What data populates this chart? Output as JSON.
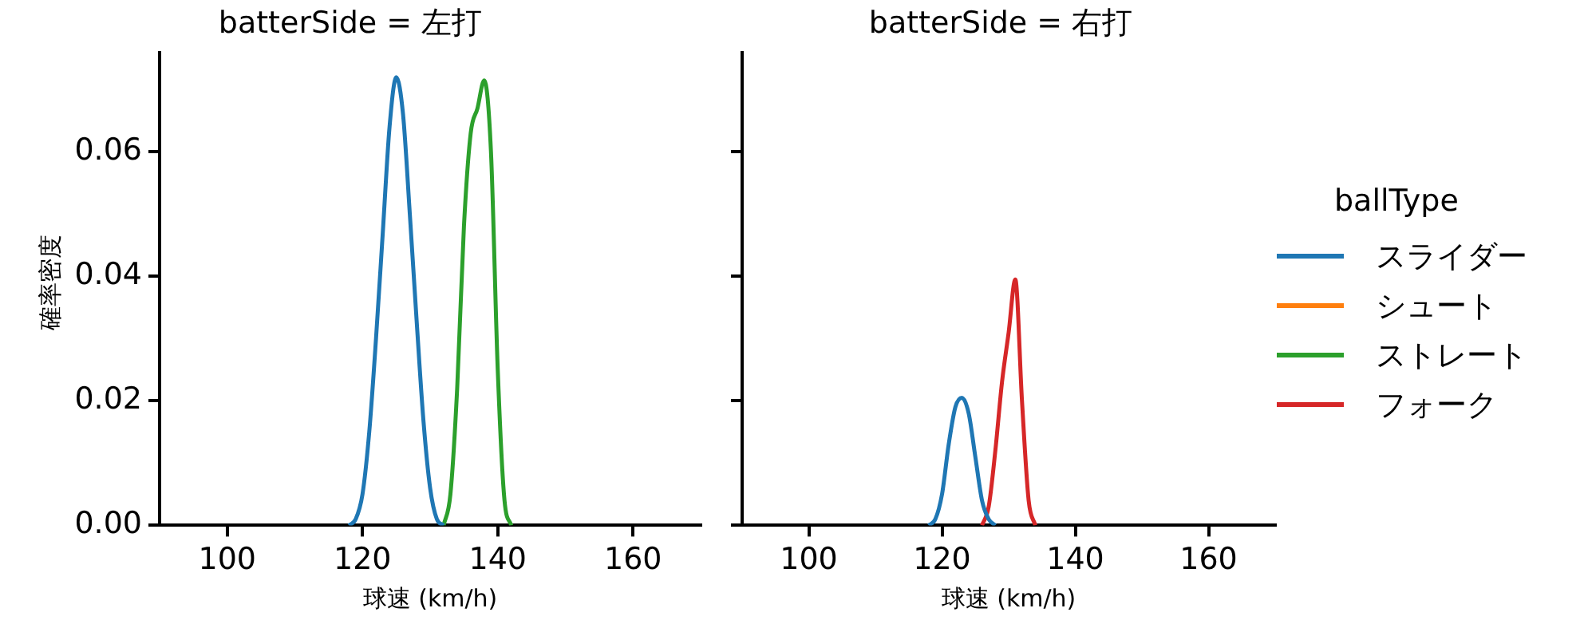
{
  "chart_data": [
    {
      "type": "line",
      "title": "batterSide = 左打",
      "xlabel": "球速 (km/h)",
      "ylabel": "確率密度",
      "xlim": [
        90,
        170
      ],
      "xticks": [
        100,
        120,
        140,
        160
      ],
      "ylim": [
        0,
        0.076
      ],
      "yticks": [
        {
          "value": 0,
          "label": "0.00"
        },
        {
          "value": 0.02,
          "label": "0.02"
        },
        {
          "value": 0.04,
          "label": "0.04"
        },
        {
          "value": 0.06,
          "label": "0.06"
        }
      ],
      "grid": false,
      "legend": false,
      "marker": "none",
      "line_style": "solid",
      "series": [
        {
          "color": "#1f77b4",
          "x": [
            118,
            119,
            120,
            121,
            122,
            123,
            124,
            125,
            126,
            127,
            128,
            129,
            130,
            131,
            132
          ],
          "values": [
            0,
            0.001,
            0.005,
            0.015,
            0.03,
            0.047,
            0.064,
            0.072,
            0.066,
            0.05,
            0.033,
            0.017,
            0.006,
            0.001,
            0
          ]
        },
        {
          "color": "#2ca02c",
          "x": [
            132,
            133,
            134,
            135,
            136,
            137,
            138,
            139,
            140,
            141,
            142
          ],
          "values": [
            0,
            0.005,
            0.022,
            0.048,
            0.063,
            0.067,
            0.0715,
            0.06,
            0.025,
            0.004,
            0
          ]
        }
      ]
    },
    {
      "type": "line",
      "title": "batterSide = 右打",
      "xlabel": "球速 (km/h)",
      "legend_title": "ballType",
      "xlim": [
        90,
        170
      ],
      "xticks": [
        100,
        120,
        140,
        160
      ],
      "ylim": [
        0,
        0.076
      ],
      "yticks": [
        {
          "value": 0,
          "label": null
        },
        {
          "value": 0.02,
          "label": null
        },
        {
          "value": 0.04,
          "label": null
        },
        {
          "value": 0.06,
          "label": null
        }
      ],
      "tick_labels": "x",
      "grid": false,
      "legend": "right",
      "marker": "none",
      "line_style": "solid",
      "series": [
        {
          "name": "スライダー",
          "color": "#1f77b4",
          "x": [
            118,
            119,
            120,
            121,
            122,
            123,
            124,
            125,
            126,
            127,
            128
          ],
          "values": [
            0,
            0.001,
            0.005,
            0.013,
            0.019,
            0.0205,
            0.018,
            0.011,
            0.004,
            0.001,
            0
          ]
        },
        {
          "name": "シュート",
          "color": "#ff7f0e"
        },
        {
          "name": "ストレート",
          "color": "#2ca02c"
        },
        {
          "name": "フォーク",
          "color": "#d62728",
          "x": [
            126,
            127,
            128,
            129,
            130,
            131,
            132,
            133,
            134
          ],
          "values": [
            0,
            0.003,
            0.012,
            0.023,
            0.031,
            0.0395,
            0.02,
            0.004,
            0
          ]
        }
      ]
    }
  ]
}
